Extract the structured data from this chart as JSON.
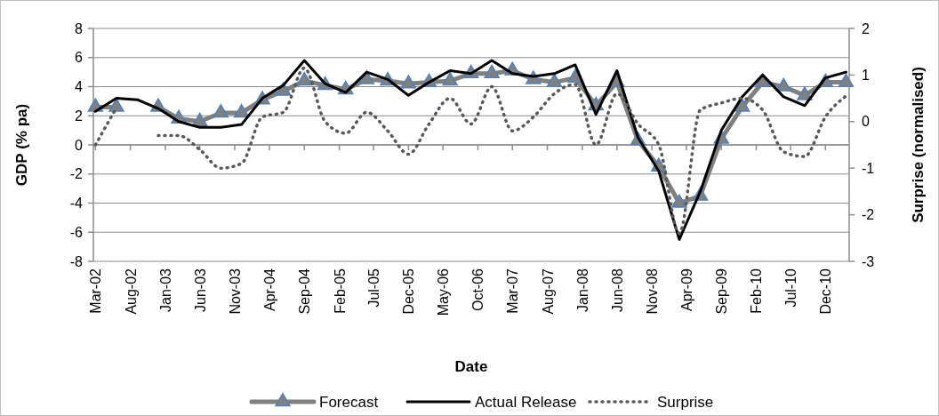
{
  "chart_data": {
    "type": "line",
    "xlabel": "Date",
    "ylabel": "GDP (% pa)",
    "y2label": "Surprise (normalised)",
    "x": [
      "2002-03",
      "2002-06",
      "2002-09",
      "2002-12",
      "2003-03",
      "2003-06",
      "2003-09",
      "2003-12",
      "2004-03",
      "2004-06",
      "2004-09",
      "2004-12",
      "2005-03",
      "2005-06",
      "2005-09",
      "2005-12",
      "2006-03",
      "2006-06",
      "2006-09",
      "2006-12",
      "2007-03",
      "2007-06",
      "2007-09",
      "2007-12",
      "2008-03",
      "2008-06",
      "2008-09",
      "2008-12",
      "2009-03",
      "2009-06",
      "2009-09",
      "2009-12",
      "2010-03",
      "2010-06",
      "2010-09",
      "2010-12",
      "2011-03"
    ],
    "series": [
      {
        "name": "Forecast",
        "color": "#808080",
        "marker": "triangle",
        "values": [
          2.6,
          2.6,
          null,
          2.6,
          1.8,
          1.6,
          2.2,
          2.2,
          3.1,
          3.7,
          4.4,
          4.1,
          3.8,
          4.5,
          4.4,
          4.2,
          4.3,
          4.4,
          4.9,
          4.9,
          5.1,
          4.5,
          4.3,
          4.6,
          2.7,
          4.3,
          0.3,
          -1.5,
          -4.0,
          -3.5,
          0.4,
          2.6,
          4.3,
          4.0,
          3.4,
          4.3,
          4.3
        ]
      },
      {
        "name": "Actual Release",
        "color": "#000000",
        "values": [
          2.3,
          3.2,
          3.1,
          2.5,
          1.6,
          1.2,
          1.2,
          1.4,
          3.2,
          4.1,
          5.8,
          4.2,
          3.6,
          5.0,
          4.5,
          3.4,
          4.3,
          5.1,
          4.9,
          5.8,
          4.9,
          4.7,
          4.9,
          5.5,
          2.1,
          5.1,
          0.5,
          -1.8,
          -6.5,
          -3.2,
          1.0,
          3.3,
          4.8,
          3.3,
          2.7,
          4.6,
          5.0
        ]
      },
      {
        "name": "Surprise",
        "color": "#595959",
        "axis": "y2",
        "line_style": "dotted",
        "values": [
          -0.5,
          0.3,
          null,
          -0.3,
          -0.3,
          -0.6,
          -1.0,
          -0.9,
          0.1,
          0.2,
          1.15,
          0.0,
          -0.25,
          0.2,
          -0.2,
          -0.7,
          -0.05,
          0.5,
          -0.05,
          0.75,
          -0.2,
          0.1,
          0.6,
          0.8,
          -0.5,
          0.6,
          -0.05,
          -0.5,
          -2.4,
          0.25,
          0.4,
          0.5,
          0.25,
          -0.65,
          -0.75,
          0.1,
          0.55
        ]
      }
    ],
    "xlim": [
      "2002-02-20",
      "2011-03-15"
    ],
    "xticks": [
      {
        "value": "2002-03",
        "label": "Mar-02"
      },
      {
        "value": "2002-08",
        "label": "Aug-02"
      },
      {
        "value": "2003-01",
        "label": "Jan-03"
      },
      {
        "value": "2003-06",
        "label": "Jun-03"
      },
      {
        "value": "2003-11",
        "label": "Nov-03"
      },
      {
        "value": "2004-04",
        "label": "Apr-04"
      },
      {
        "value": "2004-09",
        "label": "Sep-04"
      },
      {
        "value": "2005-02",
        "label": "Feb-05"
      },
      {
        "value": "2005-07",
        "label": "Jul-05"
      },
      {
        "value": "2005-12",
        "label": "Dec-05"
      },
      {
        "value": "2006-05",
        "label": "May-06"
      },
      {
        "value": "2006-10",
        "label": "Oct-06"
      },
      {
        "value": "2007-03",
        "label": "Mar-07"
      },
      {
        "value": "2007-08",
        "label": "Aug-07"
      },
      {
        "value": "2008-01",
        "label": "Jan-08"
      },
      {
        "value": "2008-06",
        "label": "Jun-08"
      },
      {
        "value": "2008-11",
        "label": "Nov-08"
      },
      {
        "value": "2009-04",
        "label": "Apr-09"
      },
      {
        "value": "2009-09",
        "label": "Sep-09"
      },
      {
        "value": "2010-02",
        "label": "Feb-10"
      },
      {
        "value": "2010-07",
        "label": "Jul-10"
      },
      {
        "value": "2010-12",
        "label": "Dec-10"
      }
    ],
    "ylim": [
      -8,
      8
    ],
    "yticks": [
      -8,
      -6,
      -4,
      -2,
      0,
      2,
      4,
      6,
      8
    ],
    "y2lim": [
      -3,
      2
    ],
    "y2ticks": [
      -3,
      -2,
      -1,
      0,
      1,
      2
    ],
    "grid": "y",
    "legend": "bottom"
  }
}
